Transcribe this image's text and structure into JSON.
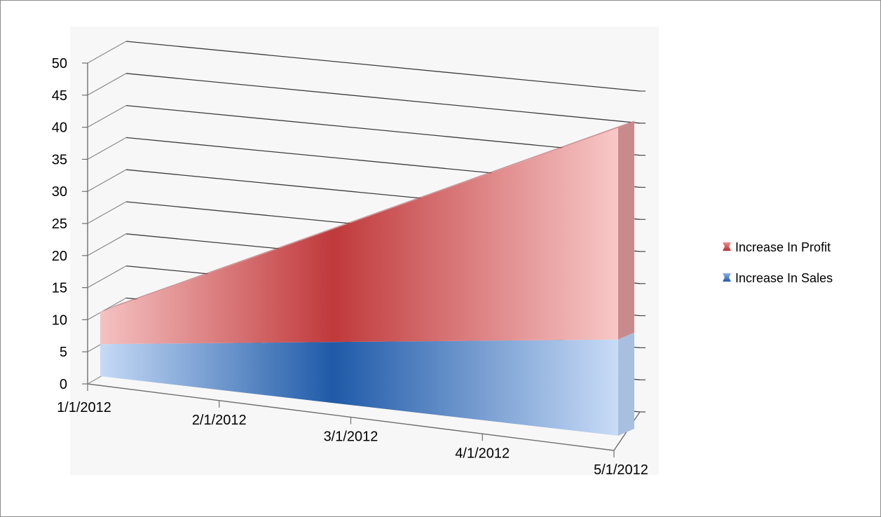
{
  "chart_data": {
    "type": "area",
    "subtype": "3d-stacked",
    "title": "",
    "xlabel": "",
    "ylabel": "",
    "categories": [
      "1/1/2012",
      "2/1/2012",
      "3/1/2012",
      "4/1/2012",
      "5/1/2012"
    ],
    "ylim": [
      0,
      50
    ],
    "yticks": [
      "0",
      "5",
      "10",
      "15",
      "20",
      "25",
      "30",
      "35",
      "40",
      "45",
      "50"
    ],
    "series": [
      {
        "name": "Increase In Profit",
        "values": [
          5,
          12,
          19,
          26,
          33
        ],
        "color": "#c0393b"
      },
      {
        "name": "Increase In Sales",
        "values": [
          5,
          7.5,
          10,
          12.5,
          15
        ],
        "color": "#1f5fad"
      }
    ],
    "grid": true,
    "legend": "right"
  }
}
